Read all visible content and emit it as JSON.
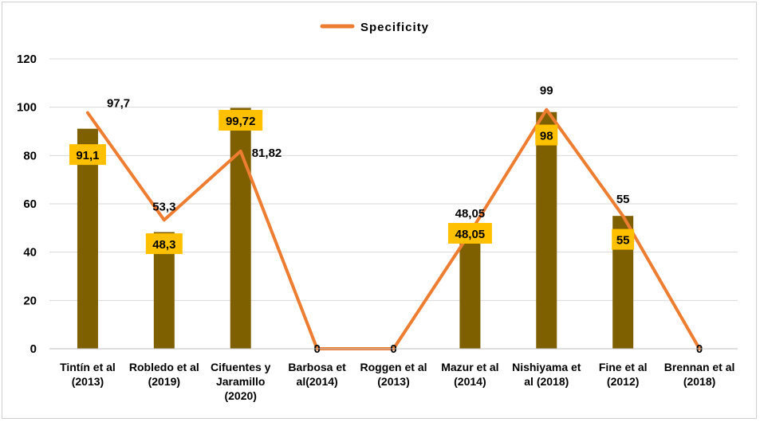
{
  "chart_data": {
    "type": "bar",
    "categories": [
      "Tintín et al (2013)",
      "Robledo et al (2019)",
      "Cifuentes y Jaramillo (2020)",
      "Barbosa et al(2014)",
      "Roggen et al (2013)",
      "Mazur et al (2014)",
      "Nishiyama et al (2018)",
      "Fine et al (2012)",
      "Brennan et al (2018)"
    ],
    "category_lines": [
      [
        "Tintín et al",
        "(2013)"
      ],
      [
        "Robledo et al",
        "(2019)"
      ],
      [
        "Cifuentes y",
        "Jaramillo",
        "(2020)"
      ],
      [
        "Barbosa et",
        "al(2014)"
      ],
      [
        "Roggen et al",
        "(2013)"
      ],
      [
        "Mazur et al",
        "(2014)"
      ],
      [
        "Nishiyama et",
        "al (2018)"
      ],
      [
        "Fine et al",
        "(2012)"
      ],
      [
        "Brennan et al",
        "(2018)"
      ]
    ],
    "series": [
      {
        "type": "bar",
        "values": [
          91.1,
          48.3,
          99.72,
          null,
          null,
          48.05,
          98,
          55,
          null
        ],
        "labels": [
          "91,1",
          "48,3",
          "99,72",
          "",
          "",
          "48,05",
          "98",
          "55",
          ""
        ],
        "color": "#7f6000",
        "label_bg": "#ffc000"
      },
      {
        "type": "line",
        "name": "Specificity",
        "values": [
          97.7,
          53.3,
          81.82,
          0,
          0,
          48.05,
          99,
          55,
          0
        ],
        "labels": [
          "97,7",
          "53,3",
          "81,82",
          "0",
          "0",
          "48,05",
          "99",
          "55",
          "0"
        ],
        "color": "#ed7d31"
      }
    ],
    "ylim": [
      0,
      120
    ],
    "yticks": [
      0,
      20,
      40,
      60,
      80,
      100,
      120
    ],
    "grid": true,
    "legend": "top",
    "title": "",
    "xlabel": "",
    "ylabel": ""
  }
}
